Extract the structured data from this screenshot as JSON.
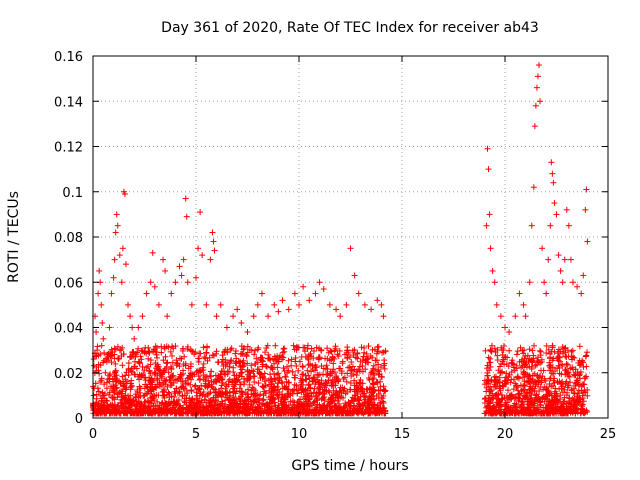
{
  "chart_data": {
    "type": "scatter",
    "title": "Day 361 of 2020, Rate Of TEC Index for receiver ab43",
    "xlabel": "GPS time / hours",
    "ylabel": "ROTI / TECUs",
    "xlim": [
      0,
      25
    ],
    "ylim": [
      0,
      0.16
    ],
    "xticks": [
      0,
      5,
      10,
      15,
      20,
      25
    ],
    "yticks": [
      0,
      0.02,
      0.04,
      0.06,
      0.08,
      0.1,
      0.12,
      0.14,
      0.16
    ],
    "xtick_labels": [
      "0",
      "5",
      "10",
      "15",
      "20",
      "25"
    ],
    "ytick_labels": [
      "0",
      "0.02",
      "0.04",
      "0.06",
      "0.08",
      "0.1",
      "0.12",
      "0.14",
      "0.16"
    ],
    "grid": true,
    "marker": "+",
    "color": "#ff0000",
    "series": [
      {
        "points": [
          [
            0.1,
            0.045
          ],
          [
            0.15,
            0.038
          ],
          [
            0.2,
            0.03
          ],
          [
            0.25,
            0.055
          ],
          [
            0.3,
            0.065
          ],
          [
            0.35,
            0.06
          ],
          [
            0.4,
            0.05
          ],
          [
            0.45,
            0.042
          ],
          [
            0.5,
            0.035
          ],
          [
            0.6,
            0.02
          ],
          [
            0.7,
            0.028
          ],
          [
            0.8,
            0.04
          ],
          [
            0.9,
            0.055
          ],
          [
            1.0,
            0.062
          ],
          [
            1.05,
            0.07
          ],
          [
            1.1,
            0.082
          ],
          [
            1.15,
            0.09
          ],
          [
            1.2,
            0.085
          ],
          [
            1.3,
            0.072
          ],
          [
            1.4,
            0.06
          ],
          [
            1.45,
            0.075
          ],
          [
            1.5,
            0.1
          ],
          [
            1.55,
            0.099
          ],
          [
            1.6,
            0.068
          ],
          [
            1.7,
            0.05
          ],
          [
            1.8,
            0.045
          ],
          [
            1.9,
            0.04
          ],
          [
            2.0,
            0.035
          ],
          [
            2.2,
            0.04
          ],
          [
            2.4,
            0.045
          ],
          [
            2.6,
            0.055
          ],
          [
            2.8,
            0.06
          ],
          [
            2.9,
            0.073
          ],
          [
            3.0,
            0.058
          ],
          [
            3.2,
            0.05
          ],
          [
            3.4,
            0.07
          ],
          [
            3.5,
            0.065
          ],
          [
            3.6,
            0.045
          ],
          [
            3.8,
            0.055
          ],
          [
            4.0,
            0.06
          ],
          [
            4.2,
            0.067
          ],
          [
            4.3,
            0.063
          ],
          [
            4.4,
            0.07
          ],
          [
            4.5,
            0.097
          ],
          [
            4.55,
            0.089
          ],
          [
            4.6,
            0.06
          ],
          [
            4.8,
            0.05
          ],
          [
            5.0,
            0.062
          ],
          [
            5.1,
            0.075
          ],
          [
            5.2,
            0.091
          ],
          [
            5.3,
            0.072
          ],
          [
            5.5,
            0.05
          ],
          [
            5.7,
            0.07
          ],
          [
            5.8,
            0.082
          ],
          [
            5.85,
            0.078
          ],
          [
            5.9,
            0.074
          ],
          [
            6.0,
            0.045
          ],
          [
            6.2,
            0.05
          ],
          [
            6.5,
            0.04
          ],
          [
            6.8,
            0.045
          ],
          [
            7.0,
            0.048
          ],
          [
            7.2,
            0.042
          ],
          [
            7.5,
            0.038
          ],
          [
            7.8,
            0.045
          ],
          [
            8.0,
            0.05
          ],
          [
            8.2,
            0.055
          ],
          [
            8.5,
            0.045
          ],
          [
            8.8,
            0.05
          ],
          [
            9.0,
            0.047
          ],
          [
            9.2,
            0.052
          ],
          [
            9.5,
            0.048
          ],
          [
            9.8,
            0.055
          ],
          [
            10.0,
            0.05
          ],
          [
            10.2,
            0.058
          ],
          [
            10.5,
            0.052
          ],
          [
            10.8,
            0.055
          ],
          [
            11.0,
            0.06
          ],
          [
            11.2,
            0.057
          ],
          [
            11.5,
            0.05
          ],
          [
            11.8,
            0.048
          ],
          [
            12.0,
            0.045
          ],
          [
            12.3,
            0.05
          ],
          [
            12.5,
            0.075
          ],
          [
            12.7,
            0.063
          ],
          [
            12.9,
            0.055
          ],
          [
            13.2,
            0.05
          ],
          [
            13.5,
            0.048
          ],
          [
            13.8,
            0.052
          ],
          [
            14.0,
            0.05
          ],
          [
            14.1,
            0.045
          ],
          [
            19.1,
            0.085
          ],
          [
            19.15,
            0.119
          ],
          [
            19.2,
            0.11
          ],
          [
            19.25,
            0.09
          ],
          [
            19.3,
            0.075
          ],
          [
            19.4,
            0.065
          ],
          [
            19.5,
            0.06
          ],
          [
            19.6,
            0.05
          ],
          [
            19.8,
            0.045
          ],
          [
            20.0,
            0.04
          ],
          [
            20.2,
            0.038
          ],
          [
            20.5,
            0.045
          ],
          [
            20.7,
            0.055
          ],
          [
            20.9,
            0.05
          ],
          [
            21.0,
            0.045
          ],
          [
            21.2,
            0.06
          ],
          [
            21.3,
            0.085
          ],
          [
            21.4,
            0.102
          ],
          [
            21.45,
            0.129
          ],
          [
            21.5,
            0.138
          ],
          [
            21.55,
            0.146
          ],
          [
            21.6,
            0.151
          ],
          [
            21.65,
            0.156
          ],
          [
            21.7,
            0.14
          ],
          [
            21.8,
            0.075
          ],
          [
            21.9,
            0.06
          ],
          [
            22.0,
            0.055
          ],
          [
            22.1,
            0.07
          ],
          [
            22.2,
            0.085
          ],
          [
            22.25,
            0.113
          ],
          [
            22.3,
            0.108
          ],
          [
            22.35,
            0.104
          ],
          [
            22.4,
            0.095
          ],
          [
            22.5,
            0.09
          ],
          [
            22.6,
            0.072
          ],
          [
            22.7,
            0.065
          ],
          [
            22.8,
            0.06
          ],
          [
            22.9,
            0.07
          ],
          [
            23.0,
            0.092
          ],
          [
            23.1,
            0.085
          ],
          [
            23.2,
            0.07
          ],
          [
            23.3,
            0.06
          ],
          [
            23.5,
            0.058
          ],
          [
            23.7,
            0.055
          ],
          [
            23.8,
            0.063
          ],
          [
            23.9,
            0.092
          ],
          [
            23.95,
            0.101
          ],
          [
            24.0,
            0.078
          ]
        ]
      }
    ]
  }
}
